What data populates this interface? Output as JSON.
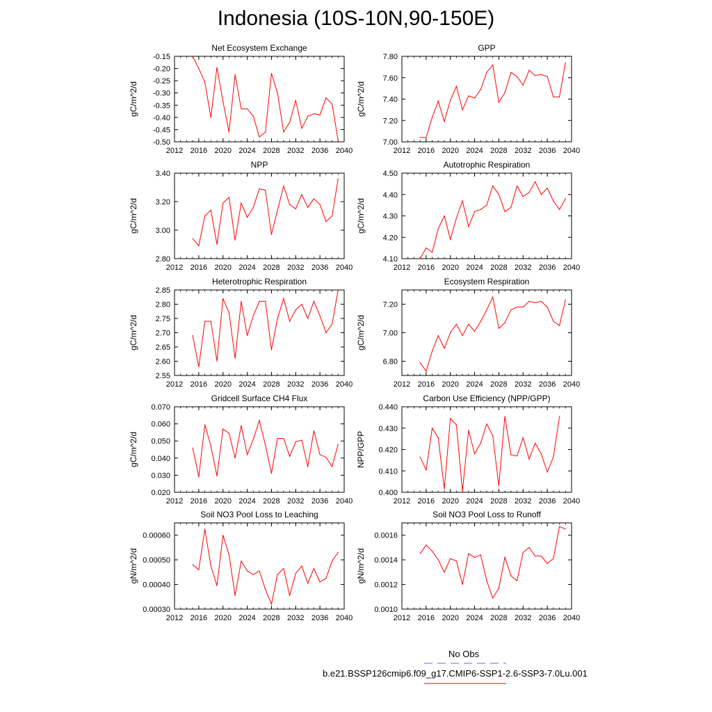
{
  "title": "Indonesia (10S-10N,90-150E)",
  "legend": {
    "items": [
      {
        "label": "No Obs",
        "color": "#6666ff",
        "dash": true
      },
      {
        "label": "b.e21.BSSP126cmip6.f09_g17.CMIP6-SSP1-2.6-SSP3-7.0Lu.001",
        "color": "#ff0000",
        "dash": false
      }
    ]
  },
  "colors": {
    "series": "#ff0000",
    "obs": "#6666ff"
  },
  "chart_data": [
    {
      "type": "line",
      "title": "Net Ecosystem Exchange",
      "ylabel": "gC/m^2/d",
      "xlim": [
        2012,
        2040
      ],
      "ylim": [
        -0.5,
        -0.15
      ],
      "xticks": [
        "2012",
        "2016",
        "2020",
        "2024",
        "2028",
        "2032",
        "2036",
        "2040"
      ],
      "yticks": [
        "-0.50",
        "-0.45",
        "-0.40",
        "-0.35",
        "-0.30",
        "-0.25",
        "-0.20",
        "-0.15"
      ],
      "x": [
        2015,
        2016,
        2017,
        2018,
        2019,
        2020,
        2021,
        2022,
        2023,
        2024,
        2025,
        2026,
        2027,
        2028,
        2029,
        2030,
        2031,
        2032,
        2033,
        2034,
        2035,
        2036,
        2037,
        2038,
        2039
      ],
      "values": [
        -0.15,
        -0.2,
        -0.255,
        -0.4,
        -0.195,
        -0.335,
        -0.46,
        -0.225,
        -0.365,
        -0.365,
        -0.395,
        -0.48,
        -0.46,
        -0.22,
        -0.3,
        -0.46,
        -0.42,
        -0.33,
        -0.445,
        -0.395,
        -0.385,
        -0.39,
        -0.32,
        -0.345,
        -0.495
      ]
    },
    {
      "type": "line",
      "title": "GPP",
      "ylabel": "gC/m^2/d",
      "xlim": [
        2012,
        2040
      ],
      "ylim": [
        7.0,
        7.8
      ],
      "xticks": [
        "2012",
        "2016",
        "2020",
        "2024",
        "2028",
        "2032",
        "2036",
        "2040"
      ],
      "yticks": [
        "7.00",
        "7.20",
        "7.40",
        "7.60",
        "7.80"
      ],
      "x": [
        2015,
        2016,
        2017,
        2018,
        2019,
        2020,
        2021,
        2022,
        2023,
        2024,
        2025,
        2026,
        2027,
        2028,
        2029,
        2030,
        2031,
        2032,
        2033,
        2034,
        2035,
        2036,
        2037,
        2038,
        2039
      ],
      "values": [
        7.04,
        7.04,
        7.23,
        7.38,
        7.19,
        7.39,
        7.52,
        7.3,
        7.43,
        7.41,
        7.49,
        7.65,
        7.72,
        7.37,
        7.46,
        7.65,
        7.61,
        7.53,
        7.67,
        7.62,
        7.63,
        7.61,
        7.42,
        7.42,
        7.74
      ]
    },
    {
      "type": "line",
      "title": "NPP",
      "ylabel": "gC/m^2/d",
      "xlim": [
        2012,
        2040
      ],
      "ylim": [
        2.8,
        3.4
      ],
      "xticks": [
        "2012",
        "2016",
        "2020",
        "2024",
        "2028",
        "2032",
        "2036",
        "2040"
      ],
      "yticks": [
        "2.80",
        "3.00",
        "3.20",
        "3.40"
      ],
      "x": [
        2015,
        2016,
        2017,
        2018,
        2019,
        2020,
        2021,
        2022,
        2023,
        2024,
        2025,
        2026,
        2027,
        2028,
        2029,
        2030,
        2031,
        2032,
        2033,
        2034,
        2035,
        2036,
        2037,
        2038,
        2039
      ],
      "values": [
        2.94,
        2.89,
        3.1,
        3.14,
        2.9,
        3.19,
        3.23,
        2.93,
        3.19,
        3.09,
        3.16,
        3.29,
        3.28,
        2.97,
        3.14,
        3.31,
        3.18,
        3.15,
        3.25,
        3.16,
        3.22,
        3.18,
        3.06,
        3.1,
        3.36
      ]
    },
    {
      "type": "line",
      "title": "Autotrophic Respiration",
      "ylabel": "gC/m^2/d",
      "xlim": [
        2012,
        2040
      ],
      "ylim": [
        4.1,
        4.5
      ],
      "xticks": [
        "2012",
        "2016",
        "2020",
        "2024",
        "2028",
        "2032",
        "2036",
        "2040"
      ],
      "yticks": [
        "4.10",
        "4.20",
        "4.30",
        "4.40",
        "4.50"
      ],
      "x": [
        2015,
        2016,
        2017,
        2018,
        2019,
        2020,
        2021,
        2022,
        2023,
        2024,
        2025,
        2026,
        2027,
        2028,
        2029,
        2030,
        2031,
        2032,
        2033,
        2034,
        2035,
        2036,
        2037,
        2038,
        2039
      ],
      "values": [
        4.1,
        4.15,
        4.13,
        4.24,
        4.3,
        4.19,
        4.29,
        4.37,
        4.25,
        4.32,
        4.33,
        4.35,
        4.44,
        4.4,
        4.32,
        4.34,
        4.44,
        4.39,
        4.41,
        4.46,
        4.4,
        4.43,
        4.37,
        4.33,
        4.38
      ]
    },
    {
      "type": "line",
      "title": "Heterotrophic Respiration",
      "ylabel": "gC/m^2/d",
      "xlim": [
        2012,
        2040
      ],
      "ylim": [
        2.55,
        2.85
      ],
      "xticks": [
        "2012",
        "2016",
        "2020",
        "2024",
        "2028",
        "2032",
        "2036",
        "2040"
      ],
      "yticks": [
        "2.55",
        "2.60",
        "2.65",
        "2.70",
        "2.75",
        "2.80",
        "2.85"
      ],
      "x": [
        2015,
        2016,
        2017,
        2018,
        2019,
        2020,
        2021,
        2022,
        2023,
        2024,
        2025,
        2026,
        2027,
        2028,
        2029,
        2030,
        2031,
        2032,
        2033,
        2034,
        2035,
        2036,
        2037,
        2038,
        2039
      ],
      "values": [
        2.69,
        2.58,
        2.74,
        2.74,
        2.6,
        2.82,
        2.77,
        2.61,
        2.81,
        2.69,
        2.76,
        2.81,
        2.81,
        2.64,
        2.75,
        2.82,
        2.74,
        2.78,
        2.8,
        2.75,
        2.81,
        2.76,
        2.7,
        2.73,
        2.85
      ]
    },
    {
      "type": "line",
      "title": "Ecosystem Respiration",
      "ylabel": "gC/m^2/d",
      "xlim": [
        2012,
        2040
      ],
      "ylim": [
        6.7,
        7.3
      ],
      "xticks": [
        "2012",
        "2016",
        "2020",
        "2024",
        "2028",
        "2032",
        "2036",
        "2040"
      ],
      "yticks": [
        "6.80",
        "7.00",
        "7.20"
      ],
      "x": [
        2015,
        2016,
        2017,
        2018,
        2019,
        2020,
        2021,
        2022,
        2023,
        2024,
        2025,
        2026,
        2027,
        2028,
        2029,
        2030,
        2031,
        2032,
        2033,
        2034,
        2035,
        2036,
        2037,
        2038,
        2039
      ],
      "values": [
        6.79,
        6.73,
        6.87,
        6.98,
        6.89,
        7.0,
        7.06,
        6.98,
        7.06,
        7.01,
        7.08,
        7.16,
        7.25,
        7.03,
        7.07,
        7.16,
        7.18,
        7.18,
        7.22,
        7.21,
        7.22,
        7.18,
        7.08,
        7.05,
        7.23
      ]
    },
    {
      "type": "line",
      "title": "Gridcell Surface CH4 Flux",
      "ylabel": "gC/m^2/d",
      "xlim": [
        2012,
        2040
      ],
      "ylim": [
        0.02,
        0.07
      ],
      "xticks": [
        "2012",
        "2016",
        "2020",
        "2024",
        "2028",
        "2032",
        "2036",
        "2040"
      ],
      "yticks": [
        "0.020",
        "0.030",
        "0.040",
        "0.050",
        "0.060",
        "0.070"
      ],
      "x": [
        2015,
        2016,
        2017,
        2018,
        2019,
        2020,
        2021,
        2022,
        2023,
        2024,
        2025,
        2026,
        2027,
        2028,
        2029,
        2030,
        2031,
        2032,
        2033,
        2034,
        2035,
        2036,
        2037,
        2038,
        2039
      ],
      "values": [
        0.046,
        0.029,
        0.0595,
        0.047,
        0.0295,
        0.057,
        0.0545,
        0.04,
        0.059,
        0.042,
        0.051,
        0.062,
        0.0475,
        0.031,
        0.0515,
        0.0515,
        0.041,
        0.0495,
        0.0505,
        0.035,
        0.056,
        0.042,
        0.0405,
        0.035,
        0.048
      ]
    },
    {
      "type": "line",
      "title": "Carbon Use Efficiency (NPP/GPP)",
      "ylabel": "NPP/GPP",
      "xlim": [
        2012,
        2040
      ],
      "ylim": [
        0.4,
        0.44
      ],
      "xticks": [
        "2012",
        "2016",
        "2020",
        "2024",
        "2028",
        "2032",
        "2036",
        "2040"
      ],
      "yticks": [
        "0.400",
        "0.410",
        "0.420",
        "0.430",
        "0.440"
      ],
      "x": [
        2015,
        2016,
        2017,
        2018,
        2019,
        2020,
        2021,
        2022,
        2023,
        2024,
        2025,
        2026,
        2027,
        2028,
        2029,
        2030,
        2031,
        2032,
        2033,
        2034,
        2035,
        2036,
        2037,
        2038,
        2039
      ],
      "values": [
        0.4165,
        0.4105,
        0.43,
        0.4255,
        0.4015,
        0.4345,
        0.4315,
        0.4005,
        0.429,
        0.418,
        0.423,
        0.432,
        0.4265,
        0.403,
        0.4355,
        0.4175,
        0.417,
        0.4255,
        0.4155,
        0.423,
        0.418,
        0.4095,
        0.4165,
        0.4355,
        null
      ]
    },
    {
      "type": "line",
      "title": "Soil NO3 Pool Loss to Leaching",
      "ylabel": "gN/m^2/d",
      "xlim": [
        2012,
        2040
      ],
      "ylim": [
        0.0003,
        0.00065
      ],
      "xticks": [
        "2012",
        "2016",
        "2020",
        "2024",
        "2028",
        "2032",
        "2036",
        "2040"
      ],
      "yticks": [
        "0.00030",
        "0.00040",
        "0.00050",
        "0.00060"
      ],
      "x": [
        2015,
        2016,
        2017,
        2018,
        2019,
        2020,
        2021,
        2022,
        2023,
        2024,
        2025,
        2026,
        2027,
        2028,
        2029,
        2030,
        2031,
        2032,
        2033,
        2034,
        2035,
        2036,
        2037,
        2038,
        2039
      ],
      "values": [
        0.00048,
        0.00046,
        0.000625,
        0.000475,
        0.000395,
        0.0006,
        0.00052,
        0.000355,
        0.000495,
        0.000455,
        0.00044,
        0.000455,
        0.00038,
        0.00032,
        0.00044,
        0.000465,
        0.000355,
        0.000445,
        0.000475,
        0.000405,
        0.000465,
        0.00041,
        0.000425,
        0.000495,
        0.00053
      ]
    },
    {
      "type": "line",
      "title": "Soil NO3 Pool Loss to Runoff",
      "ylabel": "gN/m^2/d",
      "xlim": [
        2012,
        2040
      ],
      "ylim": [
        0.001,
        0.0017
      ],
      "xticks": [
        "2012",
        "2016",
        "2020",
        "2024",
        "2028",
        "2032",
        "2036",
        "2040"
      ],
      "yticks": [
        "0.0010",
        "0.0012",
        "0.0014",
        "0.0016"
      ],
      "x": [
        2015,
        2016,
        2017,
        2018,
        2019,
        2020,
        2021,
        2022,
        2023,
        2024,
        2025,
        2026,
        2027,
        2028,
        2029,
        2030,
        2031,
        2032,
        2033,
        2034,
        2035,
        2036,
        2037,
        2038,
        2039
      ],
      "values": [
        0.00145,
        0.00152,
        0.00147,
        0.0014,
        0.0013,
        0.00141,
        0.00139,
        0.0012,
        0.00145,
        0.00142,
        0.00144,
        0.00123,
        0.00109,
        0.00117,
        0.00142,
        0.00127,
        0.00123,
        0.00146,
        0.0015,
        0.00143,
        0.00143,
        0.00137,
        0.00141,
        0.00167,
        0.00165
      ]
    }
  ]
}
